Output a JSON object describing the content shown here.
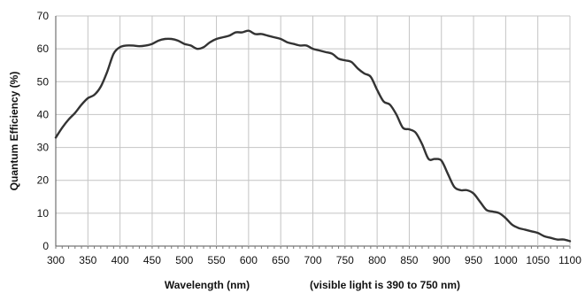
{
  "chart_data": {
    "type": "line",
    "title": "",
    "xlabel": "Wavelength (nm)",
    "xlabel_note": "(visible light is 390 to 750 nm)",
    "ylabel": "Quantum Efficiency (%)",
    "xlim": [
      300,
      1100
    ],
    "ylim": [
      0,
      70
    ],
    "xticks": [
      300,
      350,
      400,
      450,
      500,
      550,
      600,
      650,
      700,
      750,
      800,
      850,
      900,
      950,
      1000,
      1050,
      1100
    ],
    "yticks": [
      0,
      10,
      20,
      30,
      40,
      50,
      60,
      70
    ],
    "grid": true,
    "legend": "none",
    "line_color": "#333333",
    "series": [
      {
        "x": [
          300,
          310,
          320,
          330,
          340,
          350,
          360,
          370,
          380,
          390,
          400,
          410,
          420,
          430,
          440,
          450,
          460,
          470,
          480,
          490,
          500,
          510,
          520,
          530,
          540,
          550,
          560,
          570,
          580,
          590,
          600,
          610,
          620,
          630,
          640,
          650,
          660,
          670,
          680,
          690,
          700,
          710,
          720,
          730,
          740,
          750,
          760,
          770,
          780,
          790,
          800,
          810,
          820,
          830,
          840,
          850,
          860,
          870,
          880,
          890,
          900,
          910,
          920,
          930,
          940,
          950,
          960,
          970,
          980,
          990,
          1000,
          1010,
          1020,
          1030,
          1040,
          1050,
          1060,
          1070,
          1080,
          1090,
          1100
        ],
        "y": [
          33,
          36,
          38.5,
          40.5,
          43,
          45,
          46,
          48.5,
          53,
          58.5,
          60.5,
          61,
          61,
          60.8,
          61,
          61.5,
          62.5,
          63,
          63,
          62.5,
          61.5,
          61,
          60,
          60.5,
          62,
          63,
          63.5,
          64,
          65,
          65,
          65.5,
          64.5,
          64.5,
          64,
          63.5,
          63,
          62,
          61.5,
          61,
          61,
          60,
          59.5,
          59,
          58.5,
          57,
          56.5,
          56,
          54,
          52.5,
          51.5,
          47.5,
          44,
          43,
          40,
          36,
          35.5,
          34.5,
          31,
          26.5,
          26.5,
          26,
          22,
          18,
          17,
          17,
          16,
          13.5,
          11,
          10.5,
          10,
          8.5,
          6.5,
          5.5,
          5,
          4.5,
          4,
          3,
          2.5,
          2,
          2,
          1.5
        ]
      }
    ]
  }
}
